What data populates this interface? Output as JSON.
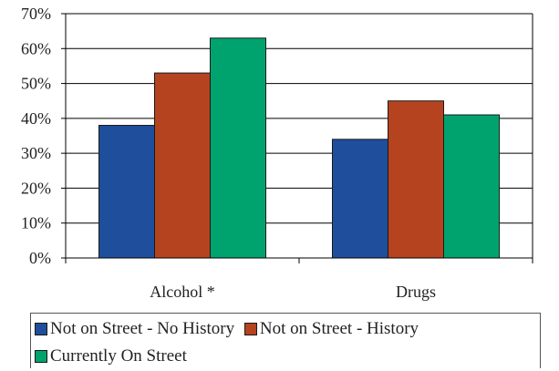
{
  "chart_data": {
    "type": "bar",
    "title": "",
    "xlabel": "",
    "ylabel": "",
    "categories": [
      "Alcohol *",
      "Drugs"
    ],
    "series": [
      {
        "name": "Not on Street - No History",
        "values": [
          38,
          34
        ],
        "color": "#1f4e9c"
      },
      {
        "name": "Not on Street - History",
        "values": [
          53,
          45
        ],
        "color": "#b5431f"
      },
      {
        "name": "Currently On Street",
        "values": [
          63,
          41
        ],
        "color": "#00a36e"
      }
    ],
    "ylim": [
      0,
      70
    ],
    "yticks": [
      0,
      10,
      20,
      30,
      40,
      50,
      60,
      70
    ],
    "ytick_labels": [
      "0%",
      "10%",
      "20%",
      "30%",
      "40%",
      "50%",
      "60%",
      "70%"
    ],
    "value_format": "percent",
    "grid": true,
    "legend_position": "bottom"
  }
}
